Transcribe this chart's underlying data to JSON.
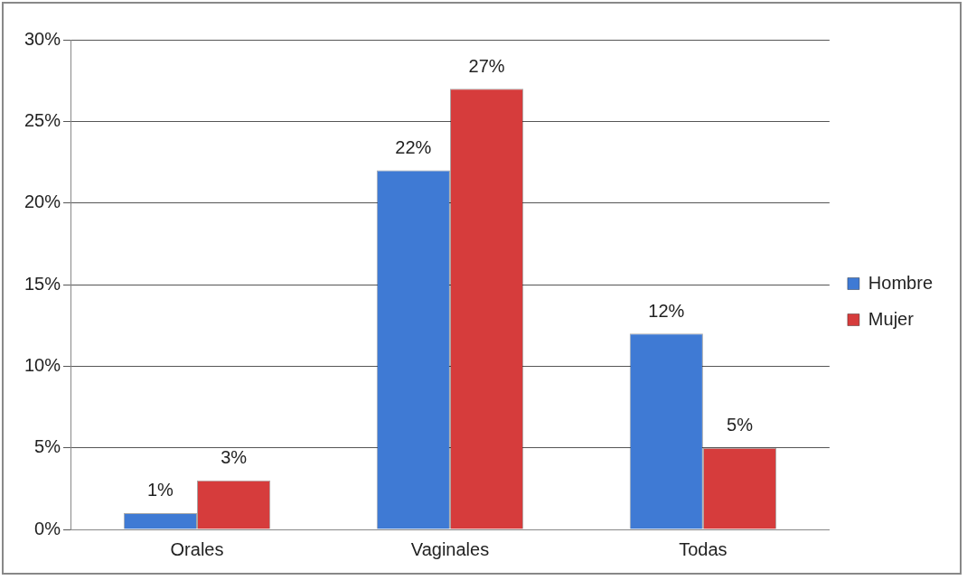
{
  "chart_data": {
    "type": "bar",
    "categories": [
      "Orales",
      "Vaginales",
      "Todas"
    ],
    "series": [
      {
        "name": "Hombre",
        "color": "#3f7ad4",
        "values": [
          1,
          22,
          12
        ]
      },
      {
        "name": "Mujer",
        "color": "#d63c3c",
        "values": [
          3,
          27,
          5
        ]
      }
    ],
    "ylim": [
      0,
      30
    ],
    "yticks": [
      {
        "value": 0,
        "label": "0%"
      },
      {
        "value": 5,
        "label": "5%"
      },
      {
        "value": 10,
        "label": "10%"
      },
      {
        "value": 15,
        "label": "15%"
      },
      {
        "value": 20,
        "label": "20%"
      },
      {
        "value": 25,
        "label": "25%"
      },
      {
        "value": 30,
        "label": "30%"
      }
    ],
    "value_labels": [
      [
        "1%",
        "22%",
        "12%"
      ],
      [
        "3%",
        "27%",
        "5%"
      ]
    ],
    "grid": "y",
    "legend": "right"
  }
}
